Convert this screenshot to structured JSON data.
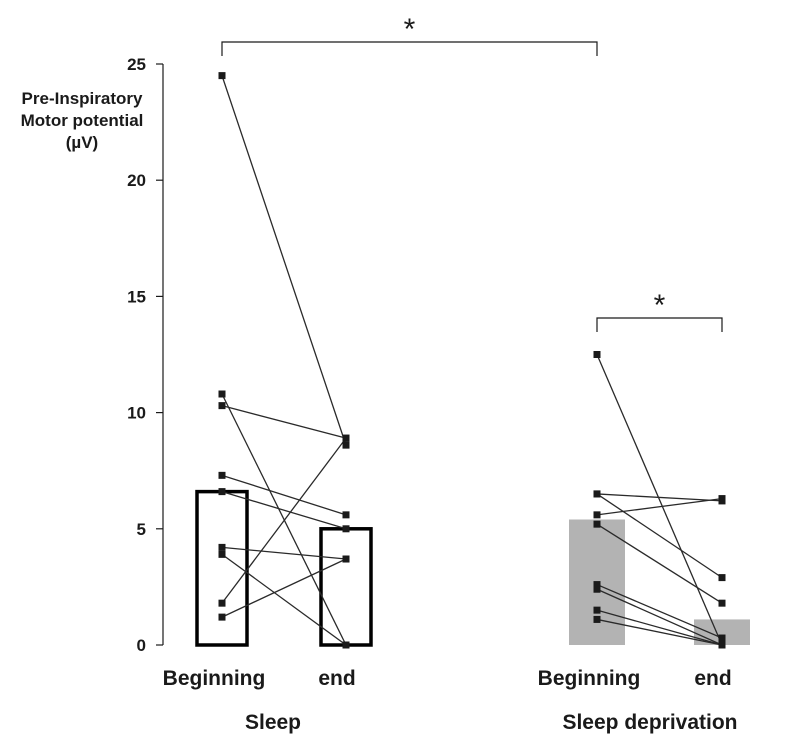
{
  "chart_data": {
    "type": "bar",
    "ylabel_lines": [
      "Pre-Inspiratory",
      "Motor potential",
      "(µV)"
    ],
    "ylim": [
      0,
      25
    ],
    "yticks": [
      0,
      5,
      10,
      15,
      20,
      25
    ],
    "ytick_labels": [
      "0",
      "5",
      "10",
      "15",
      "20",
      "25"
    ],
    "groups": [
      {
        "label": "Sleep",
        "bar_style": "outline"
      },
      {
        "label": "Sleep deprivation",
        "bar_style": "filled"
      }
    ],
    "categories": [
      "Beginning",
      "end",
      "Beginning",
      "end"
    ],
    "bar_values": [
      6.6,
      5.0,
      5.4,
      1.1
    ],
    "paired_subjects": [
      {
        "group": "Sleep",
        "pairs": [
          [
            24.5,
            8.6
          ],
          [
            10.8,
            0.0
          ],
          [
            10.3,
            8.9
          ],
          [
            7.3,
            5.6
          ],
          [
            6.6,
            5.0
          ],
          [
            4.2,
            3.7
          ],
          [
            3.9,
            0.0
          ],
          [
            1.8,
            8.9
          ],
          [
            1.2,
            3.7
          ]
        ]
      },
      {
        "group": "Sleep deprivation",
        "pairs": [
          [
            12.5,
            0.0
          ],
          [
            6.5,
            6.2
          ],
          [
            6.5,
            2.9
          ],
          [
            5.6,
            6.3
          ],
          [
            5.2,
            1.8
          ],
          [
            2.6,
            0.3
          ],
          [
            2.4,
            0.0
          ],
          [
            1.5,
            0.0
          ],
          [
            1.1,
            0.0
          ]
        ]
      }
    ],
    "significance": [
      {
        "from": 0,
        "to": 2,
        "label": "*"
      },
      {
        "from": 2,
        "to": 3,
        "label": "*"
      }
    ],
    "colors": {
      "axis": "#1a1a1a",
      "line": "#2a2a2a",
      "marker": "#1a1a1a",
      "filled_bar": "#b3b3b3",
      "outline_bar": "#000000"
    },
    "grid": false,
    "legend": "none"
  }
}
